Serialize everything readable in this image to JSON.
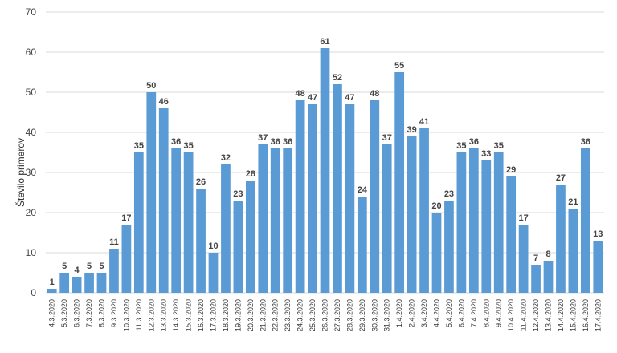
{
  "chart_data": {
    "type": "bar",
    "title": "",
    "xlabel": "",
    "ylabel": "Število primerov",
    "ylim": [
      0,
      70
    ],
    "yticks": [
      "0",
      "10",
      "20",
      "30",
      "40",
      "50",
      "60",
      "70"
    ],
    "grid": true,
    "bar_color": "#5b9bd5",
    "categories": [
      "4.3.2020",
      "5.3.2020",
      "6.3.2020",
      "7.3.2020",
      "8.3.2020",
      "9.3.2020",
      "10.3.2020",
      "11.3.2020",
      "12.3.2020",
      "13.3.2020",
      "14.3.2020",
      "15.3.2020",
      "16.3.2020",
      "17.3.2020",
      "18.3.2020",
      "19.3.2020",
      "20.3.2020",
      "21.3.2020",
      "22.3.2020",
      "23.3.2020",
      "24.3.2020",
      "25.3.2020",
      "26.3.2020",
      "27.3.2020",
      "28.3.2020",
      "29.3.2020",
      "30.3.2020",
      "31.3.2020",
      "1.4.2020",
      "2.4.2020",
      "3.4.2020",
      "4.4.2020",
      "5.4.2020",
      "6.4.2020",
      "7.4.2020",
      "8.4.2020",
      "9.4.2020",
      "10.4.2020",
      "11.4.2020",
      "12.4.2020",
      "13.4.2020",
      "14.4.2020",
      "15.4.2020",
      "16.4.2020",
      "17.4.2020"
    ],
    "values": [
      1,
      5,
      4,
      5,
      5,
      11,
      17,
      35,
      50,
      46,
      36,
      35,
      26,
      10,
      32,
      23,
      28,
      37,
      36,
      36,
      48,
      47,
      61,
      52,
      47,
      24,
      48,
      37,
      55,
      39,
      41,
      20,
      23,
      35,
      36,
      33,
      35,
      29,
      17,
      7,
      8,
      27,
      21,
      36,
      13
    ]
  }
}
